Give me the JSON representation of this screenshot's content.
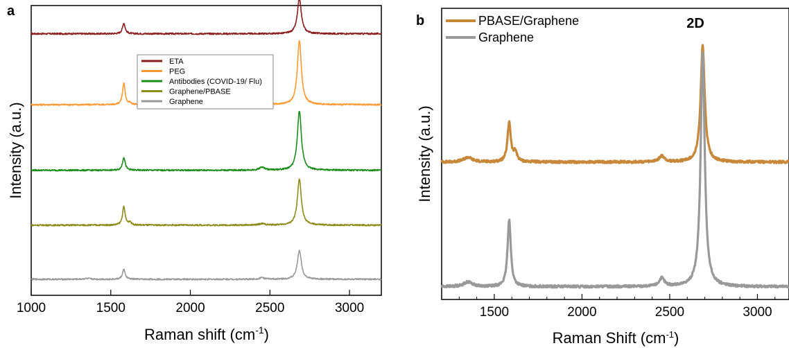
{
  "panels": {
    "a": {
      "letter": "a"
    },
    "b": {
      "letter": "b",
      "annotation": "2D"
    }
  },
  "colors": {
    "ETA": "#8b1a1a",
    "PEG": "#ff9933",
    "Antibodies": "#1a8c1a",
    "GraphenePBASE_a": "#8c8c1a",
    "Graphene": "#999999",
    "PBASEGraphene_b": "#c8883a"
  },
  "chart_data": [
    {
      "type": "line",
      "panel": "a",
      "xlabel": "Raman shift (cm",
      "xlabel_sup": "-1",
      "xlabel_end": ")",
      "ylabel": "Intensity (a.u.)",
      "xlim": [
        1000,
        3200
      ],
      "ylim": [
        0,
        19
      ],
      "xticks": [
        1000,
        1500,
        2000,
        2500,
        3000
      ],
      "yticks_shown": false,
      "legend_position": "center",
      "peaks": [
        {
          "center": 1350,
          "width": 25
        },
        {
          "center": 1582,
          "width": 10
        },
        {
          "center": 1620,
          "width": 10
        },
        {
          "center": 2450,
          "width": 20
        },
        {
          "center": 2685,
          "width": 15
        }
      ],
      "series": [
        {
          "name": "ETA",
          "color": "#8b1a1a",
          "baseline": 17.15,
          "amps": [
            0,
            0.7,
            0,
            0,
            2.3
          ]
        },
        {
          "name": "PEG",
          "color": "#ff9933",
          "baseline": 12.5,
          "amps": [
            0,
            1.4,
            0.1,
            0.2,
            4.2
          ]
        },
        {
          "name": "Antibodies (COVID-19/ Flu)",
          "color": "#1a8c1a",
          "baseline": 8.2,
          "amps": [
            0,
            0.85,
            0,
            0.2,
            3.9
          ]
        },
        {
          "name": "Graphene/PBASE",
          "color": "#8c8c1a",
          "baseline": 4.6,
          "amps": [
            0,
            1.2,
            0.2,
            0.1,
            3.0
          ]
        },
        {
          "name": "Graphene",
          "color": "#999999",
          "baseline": 1.05,
          "amps": [
            0.05,
            0.65,
            0,
            0.1,
            1.9
          ]
        }
      ]
    },
    {
      "type": "line",
      "panel": "b",
      "xlabel": "Raman Shift (cm",
      "xlabel_sup": "-1",
      "xlabel_end": ")",
      "ylabel": "Intensity (a.u.)",
      "xlim": [
        1200,
        3180
      ],
      "ylim": [
        0,
        12.5
      ],
      "xticks": [
        1500,
        2000,
        2500,
        3000
      ],
      "yticks_shown": false,
      "legend_position": "top-left",
      "peaks": [
        {
          "center": 1350,
          "width": 30
        },
        {
          "center": 1585,
          "width": 11
        },
        {
          "center": 1620,
          "width": 12
        },
        {
          "center": 2455,
          "width": 18
        },
        {
          "center": 2688,
          "width": 14
        }
      ],
      "series": [
        {
          "name": "PBASE/Graphene",
          "color": "#c8883a",
          "baseline": 5.9,
          "amps": [
            0.2,
            1.7,
            0.4,
            0.25,
            5.0
          ]
        },
        {
          "name": "Graphene",
          "color": "#999999",
          "baseline": 0.55,
          "amps": [
            0.2,
            2.9,
            0,
            0.35,
            10.1
          ]
        }
      ]
    }
  ]
}
